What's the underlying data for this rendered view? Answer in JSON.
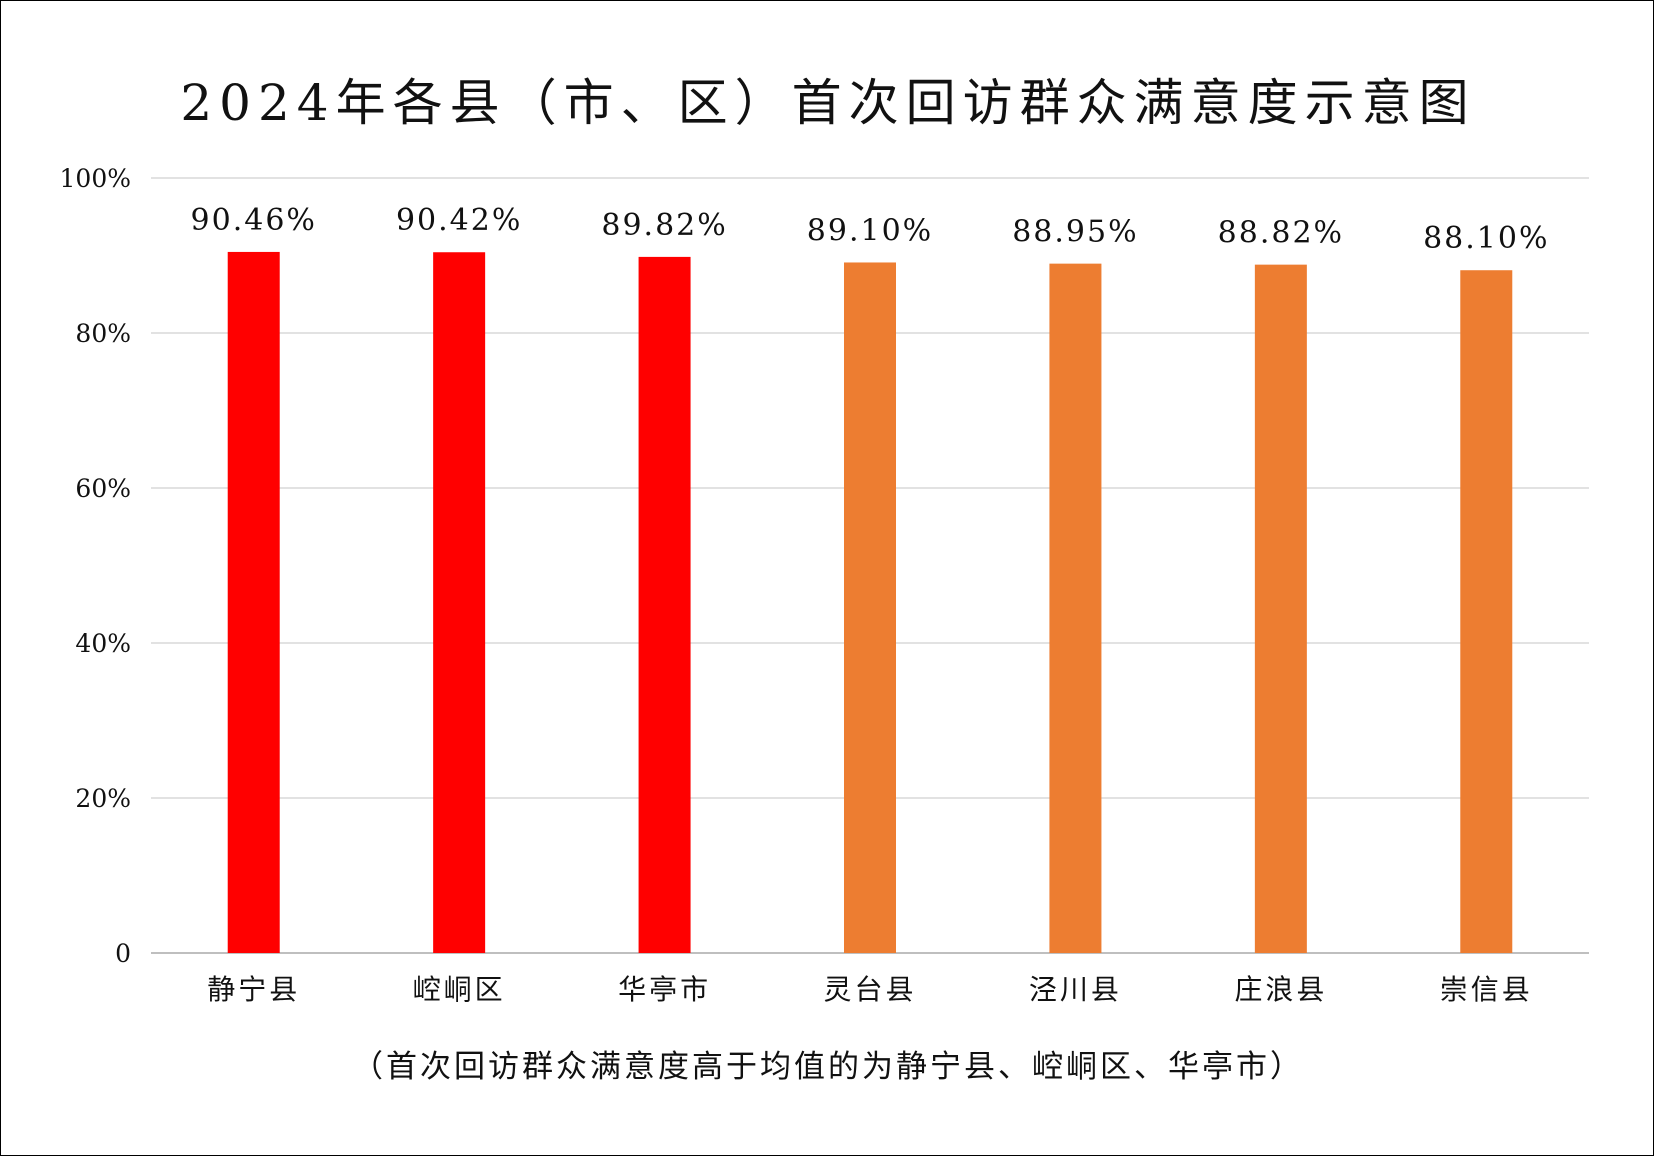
{
  "chart_data": {
    "type": "bar",
    "title": "2024年各县（市、区）首次回访群众满意度示意图",
    "caption": "（首次回访群众满意度高于均值的为静宁县、崆峒区、华亭市）",
    "categories": [
      "静宁县",
      "崆峒区",
      "华亭市",
      "灵台县",
      "泾川县",
      "庄浪县",
      "崇信县"
    ],
    "values": [
      90.46,
      90.42,
      89.82,
      89.1,
      88.95,
      88.82,
      88.1
    ],
    "data_labels": [
      "90.46%",
      "90.42%",
      "89.82%",
      "89.10%",
      "88.95%",
      "88.82%",
      "88.10%"
    ],
    "bar_colors": [
      "#ff0000",
      "#ff0000",
      "#ff0000",
      "#ed7d31",
      "#ed7d31",
      "#ed7d31",
      "#ed7d31"
    ],
    "ylim": [
      0,
      100
    ],
    "yticks": [
      0,
      20,
      40,
      60,
      80,
      100
    ],
    "ytick_labels": [
      "0",
      "20%",
      "40%",
      "60%",
      "80%",
      "100%"
    ],
    "xlabel": "",
    "ylabel": "",
    "grid": true,
    "gridline_color": "#d9d9d9"
  }
}
